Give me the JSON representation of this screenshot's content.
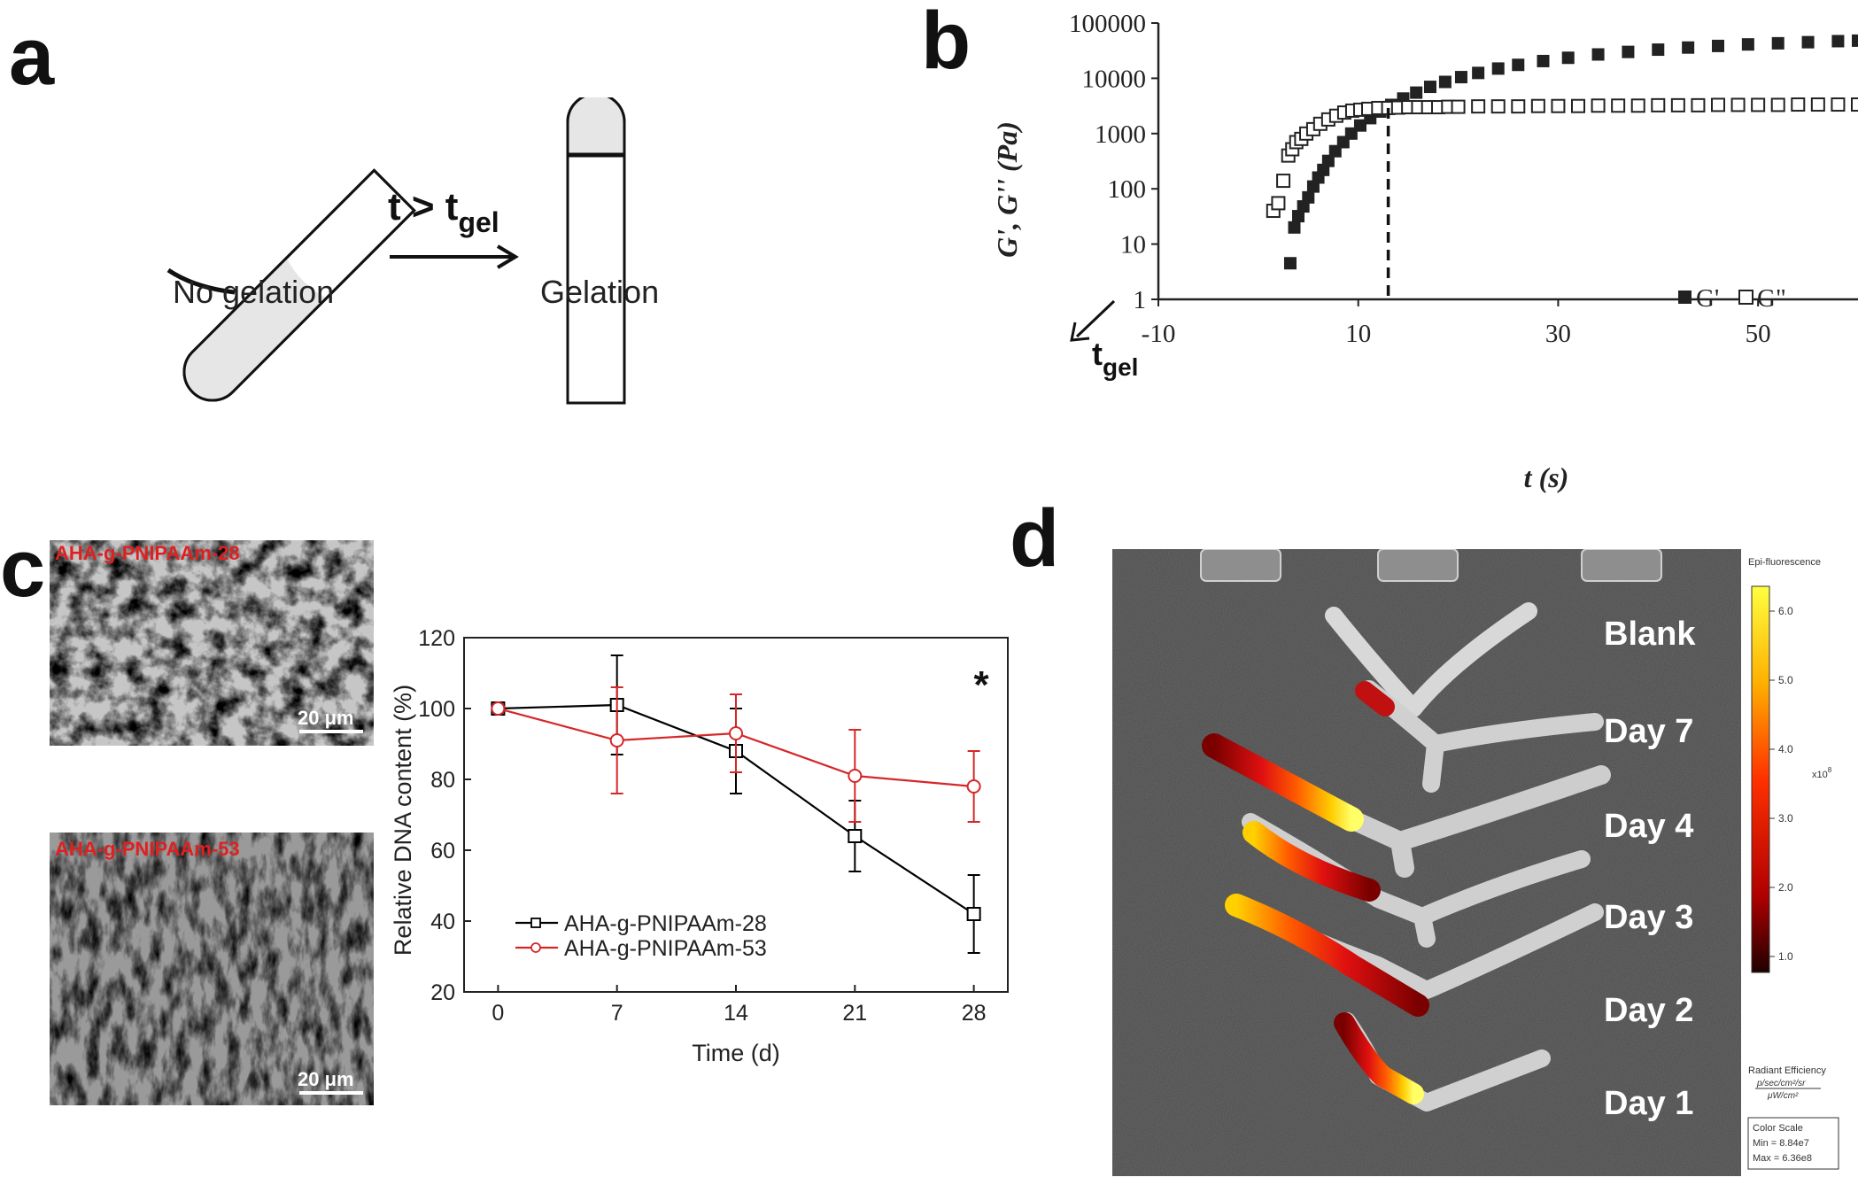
{
  "panels": {
    "a": {
      "letter": "a",
      "arrow_label_main": "t > t",
      "arrow_label_sub": "gel",
      "left_caption": "No gelation",
      "right_caption": "Gelation"
    },
    "b": {
      "letter": "b",
      "tgel_main": "t",
      "tgel_sub": "gel"
    },
    "c": {
      "letter": "c",
      "sem_top_label": "AHA-g-PNIPAAm-28",
      "sem_bottom_label": "AHA-g-PNIPAAm-53",
      "scale_bar_label": "20 μm",
      "significance": "*"
    },
    "d": {
      "letter": "d",
      "rows": [
        "Blank",
        "Day 7",
        "Day 4",
        "Day 3",
        "Day 2",
        "Day 1"
      ],
      "colorbar_title": "Epi-fluorescence",
      "colorbar_ticks": [
        "6.0",
        "5.0",
        "4.0",
        "3.0",
        "2.0",
        "1.0"
      ],
      "colorbar_exponent": "x10",
      "colorbar_exponent_power": "8",
      "radiant_label_1": "Radiant Efficiency",
      "radiant_label_2": "p/sec/cm²/sr",
      "radiant_label_3": "μW/cm²",
      "scale_title": "Color Scale",
      "scale_min": "Min = 8.84e7",
      "scale_max": "Max = 6.36e8"
    }
  },
  "chart_data": [
    {
      "type": "scatter",
      "panel": "b",
      "xlabel": "t (s)",
      "ylabel": "G', G'' (Pa)",
      "xlim": [
        -10,
        60
      ],
      "ylim_log": [
        1,
        100000
      ],
      "yscale": "log",
      "xticks": [
        -10,
        10,
        30,
        50
      ],
      "yticks": [
        1,
        10,
        100,
        1000,
        10000,
        100000
      ],
      "legend_position": "right",
      "tgel_x": 13,
      "series": [
        {
          "name": "G'",
          "marker": "filled-square",
          "x": [
            3.2,
            3.6,
            4.0,
            4.5,
            5.0,
            5.5,
            6.0,
            6.5,
            7.0,
            7.7,
            8.5,
            9.3,
            10.2,
            11.2,
            12.2,
            13.3,
            14.5,
            15.8,
            17.2,
            18.7,
            20.3,
            22.0,
            24.0,
            26.0,
            28.5,
            31.0,
            34.0,
            37.0,
            40.0,
            43.0,
            46.0,
            49.0,
            52.0,
            55.0,
            58.0,
            60.0
          ],
          "y": [
            4.5,
            20,
            32,
            48,
            70,
            110,
            160,
            220,
            320,
            480,
            700,
            1000,
            1400,
            1900,
            2500,
            3300,
            4300,
            5500,
            7000,
            8600,
            10500,
            12500,
            15000,
            17500,
            20500,
            23500,
            27000,
            30000,
            33000,
            36000,
            38500,
            41000,
            43000,
            45000,
            47000,
            48000
          ]
        },
        {
          "name": "G\"",
          "marker": "open-square",
          "x": [
            1.5,
            2.0,
            2.5,
            3.0,
            3.4,
            3.8,
            4.3,
            4.8,
            5.5,
            6.2,
            7.0,
            7.8,
            8.6,
            9.4,
            10.2,
            11.0,
            12.0,
            13.0,
            14.0,
            15.0,
            16.0,
            17.0,
            18.0,
            19.0,
            20.0,
            22.0,
            24.0,
            26.0,
            28.0,
            30.0,
            32.0,
            34.0,
            36.0,
            38.0,
            40.0,
            42.0,
            44.0,
            46.0,
            48.0,
            50.0,
            52.0,
            54.0,
            56.0,
            58.0,
            60.0
          ],
          "y": [
            40,
            55,
            140,
            400,
            520,
            700,
            800,
            1000,
            1200,
            1500,
            1800,
            2100,
            2400,
            2600,
            2700,
            2800,
            2900,
            2900,
            2950,
            3000,
            3000,
            3000,
            3000,
            3050,
            3050,
            3100,
            3100,
            3100,
            3150,
            3150,
            3150,
            3200,
            3200,
            3200,
            3250,
            3250,
            3250,
            3300,
            3300,
            3300,
            3300,
            3350,
            3350,
            3350,
            3350
          ]
        }
      ]
    },
    {
      "type": "line",
      "panel": "c",
      "xlabel": "Time (d)",
      "ylabel": "Relative DNA content (%)",
      "xlim": [
        -2,
        30
      ],
      "ylim": [
        20,
        120
      ],
      "xticks": [
        0,
        7,
        14,
        21,
        28
      ],
      "yticks": [
        20,
        40,
        60,
        80,
        100,
        120
      ],
      "legend_position": "bottom-left",
      "series": [
        {
          "name": "AHA-g-PNIPAAm-28",
          "color": "#000000",
          "marker": "open-square",
          "x": [
            0,
            7,
            14,
            21,
            28
          ],
          "y": [
            100,
            101,
            88,
            64,
            42
          ],
          "err": [
            0,
            14,
            12,
            10,
            11
          ]
        },
        {
          "name": "AHA-g-PNIPAAm-53",
          "color": "#d62728",
          "marker": "open-circle",
          "x": [
            0,
            7,
            14,
            21,
            28
          ],
          "y": [
            100,
            91,
            93,
            81,
            78
          ],
          "err": [
            0,
            15,
            11,
            13,
            10
          ]
        }
      ]
    }
  ]
}
